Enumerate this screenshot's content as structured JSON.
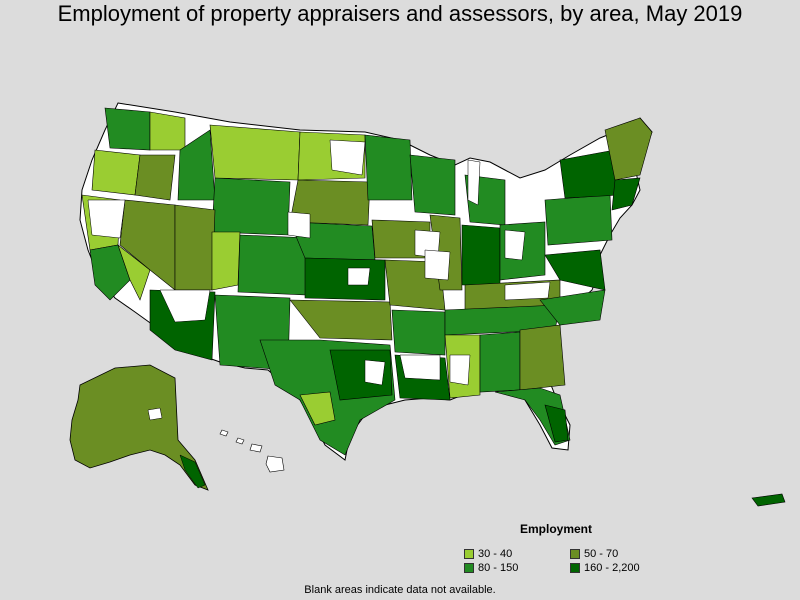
{
  "title": "Employment of property appraisers and assessors, by area, May 2019",
  "legend": {
    "title": "Employment",
    "items": [
      {
        "label": "30 - 40",
        "color": "#9acd32"
      },
      {
        "label": "50 - 70",
        "color": "#6b8e23"
      },
      {
        "label": "80 - 150",
        "color": "#228b22"
      },
      {
        "label": "160 - 2,200",
        "color": "#006400"
      }
    ]
  },
  "footnote": "Blank areas indicate data not available.",
  "colors": {
    "background": "#dcdcdc",
    "no_data": "#ffffff",
    "border": "#000000"
  }
}
